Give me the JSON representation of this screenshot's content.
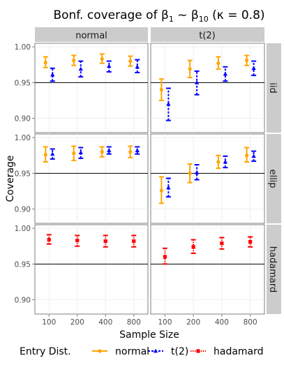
{
  "chart_data": {
    "type": "scatter",
    "title": "Bonf. coverage of β̂1 ~ β̂10 (κ = 0.8)",
    "title_parts": {
      "prefix": "Bonf. coverage of ",
      "beta": "β",
      "sub1": "1",
      "tilde": " ~ ",
      "sub2": "10",
      "kappa": " (κ = 0.8)"
    },
    "xlabel": "Sample Size",
    "ylabel": "Coverage",
    "x_categories": [
      "100",
      "200",
      "400",
      "800"
    ],
    "ylim": [
      0.88,
      1.005
    ],
    "yticks": [
      0.9,
      0.95,
      1.0
    ],
    "ytick_labels": [
      "0.90",
      "0.95",
      "1.00"
    ],
    "reference_line": 0.95,
    "column_facets": [
      "normal",
      "t(2)"
    ],
    "row_facets": [
      "iid",
      "ellip",
      "hadamard"
    ],
    "legend": {
      "title": "Entry Dist.",
      "position": "bottom",
      "entries": [
        {
          "name": "normal",
          "color": "#FFA500",
          "shape": "circle",
          "linetype": "solid"
        },
        {
          "name": "t(2)",
          "color": "#0000FF",
          "shape": "triangle",
          "linetype": "dashed"
        },
        {
          "name": "hadamard",
          "color": "#FF0000",
          "shape": "square",
          "linetype": "dotted"
        }
      ]
    },
    "panels": [
      {
        "row": "iid",
        "col": "normal",
        "series": [
          {
            "name": "normal",
            "points": [
              {
                "x": "100",
                "y": 0.978,
                "lo": 0.971,
                "hi": 0.986
              },
              {
                "x": "200",
                "y": 0.981,
                "lo": 0.974,
                "hi": 0.988
              },
              {
                "x": "400",
                "y": 0.983,
                "lo": 0.977,
                "hi": 0.99
              },
              {
                "x": "800",
                "y": 0.98,
                "lo": 0.973,
                "hi": 0.987
              }
            ]
          },
          {
            "name": "t(2)",
            "points": [
              {
                "x": "100",
                "y": 0.961,
                "lo": 0.952,
                "hi": 0.97
              },
              {
                "x": "200",
                "y": 0.969,
                "lo": 0.958,
                "hi": 0.98
              },
              {
                "x": "400",
                "y": 0.973,
                "lo": 0.965,
                "hi": 0.98
              },
              {
                "x": "800",
                "y": 0.972,
                "lo": 0.964,
                "hi": 0.982
              }
            ]
          }
        ]
      },
      {
        "row": "iid",
        "col": "t(2)",
        "series": [
          {
            "name": "normal",
            "points": [
              {
                "x": "100",
                "y": 0.94,
                "lo": 0.925,
                "hi": 0.955
              },
              {
                "x": "200",
                "y": 0.969,
                "lo": 0.957,
                "hi": 0.981
              },
              {
                "x": "400",
                "y": 0.977,
                "lo": 0.969,
                "hi": 0.986
              },
              {
                "x": "800",
                "y": 0.981,
                "lo": 0.974,
                "hi": 0.988
              }
            ]
          },
          {
            "name": "t(2)",
            "points": [
              {
                "x": "100",
                "y": 0.92,
                "lo": 0.897,
                "hi": 0.942
              },
              {
                "x": "200",
                "y": 0.95,
                "lo": 0.933,
                "hi": 0.966
              },
              {
                "x": "400",
                "y": 0.962,
                "lo": 0.952,
                "hi": 0.972
              },
              {
                "x": "800",
                "y": 0.97,
                "lo": 0.96,
                "hi": 0.98
              }
            ]
          }
        ]
      },
      {
        "row": "ellip",
        "col": "normal",
        "series": [
          {
            "name": "normal",
            "points": [
              {
                "x": "100",
                "y": 0.976,
                "lo": 0.966,
                "hi": 0.987
              },
              {
                "x": "200",
                "y": 0.978,
                "lo": 0.968,
                "hi": 0.988
              },
              {
                "x": "400",
                "y": 0.98,
                "lo": 0.973,
                "hi": 0.987
              },
              {
                "x": "800",
                "y": 0.98,
                "lo": 0.972,
                "hi": 0.988
              }
            ]
          },
          {
            "name": "t(2)",
            "points": [
              {
                "x": "100",
                "y": 0.977,
                "lo": 0.97,
                "hi": 0.984
              },
              {
                "x": "200",
                "y": 0.979,
                "lo": 0.971,
                "hi": 0.986
              },
              {
                "x": "400",
                "y": 0.982,
                "lo": 0.977,
                "hi": 0.987
              },
              {
                "x": "800",
                "y": 0.982,
                "lo": 0.977,
                "hi": 0.987
              }
            ]
          }
        ]
      },
      {
        "row": "ellip",
        "col": "t(2)",
        "series": [
          {
            "name": "normal",
            "points": [
              {
                "x": "100",
                "y": 0.926,
                "lo": 0.908,
                "hi": 0.945
              },
              {
                "x": "200",
                "y": 0.95,
                "lo": 0.937,
                "hi": 0.963
              },
              {
                "x": "400",
                "y": 0.966,
                "lo": 0.957,
                "hi": 0.975
              },
              {
                "x": "800",
                "y": 0.975,
                "lo": 0.966,
                "hi": 0.986
              }
            ]
          },
          {
            "name": "t(2)",
            "points": [
              {
                "x": "100",
                "y": 0.93,
                "lo": 0.917,
                "hi": 0.943
              },
              {
                "x": "200",
                "y": 0.951,
                "lo": 0.941,
                "hi": 0.962
              },
              {
                "x": "400",
                "y": 0.966,
                "lo": 0.958,
                "hi": 0.974
              },
              {
                "x": "800",
                "y": 0.974,
                "lo": 0.967,
                "hi": 0.981
              }
            ]
          }
        ]
      },
      {
        "row": "hadamard",
        "col": "normal",
        "series": [
          {
            "name": "hadamard",
            "points": [
              {
                "x": "100",
                "y": 0.984,
                "lo": 0.978,
                "hi": 0.991
              },
              {
                "x": "200",
                "y": 0.983,
                "lo": 0.975,
                "hi": 0.99
              },
              {
                "x": "400",
                "y": 0.982,
                "lo": 0.974,
                "hi": 0.99
              },
              {
                "x": "800",
                "y": 0.982,
                "lo": 0.974,
                "hi": 0.99
              }
            ]
          }
        ]
      },
      {
        "row": "hadamard",
        "col": "t(2)",
        "series": [
          {
            "name": "hadamard",
            "points": [
              {
                "x": "100",
                "y": 0.96,
                "lo": 0.95,
                "hi": 0.972
              },
              {
                "x": "200",
                "y": 0.974,
                "lo": 0.965,
                "hi": 0.984
              },
              {
                "x": "400",
                "y": 0.979,
                "lo": 0.971,
                "hi": 0.987
              },
              {
                "x": "800",
                "y": 0.981,
                "lo": 0.974,
                "hi": 0.988
              }
            ]
          }
        ]
      }
    ]
  }
}
